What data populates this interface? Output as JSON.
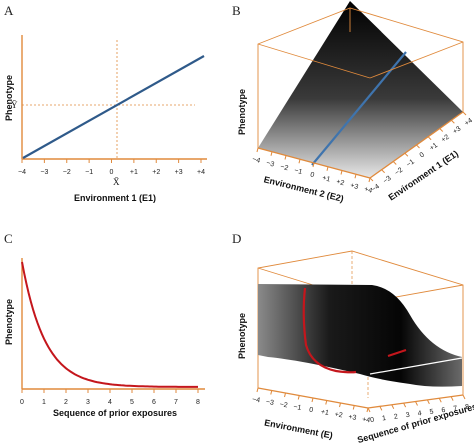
{
  "panels": {
    "a": {
      "letter": "A",
      "xlabel": "Environment 1 (E1)",
      "ylabel": "Phenotype",
      "mean_y_label": "Ȳ",
      "mean_x_label": "X̄",
      "x_ticks": [
        "−4",
        "−3",
        "−2",
        "−1",
        "0",
        "+1",
        "+2",
        "+3",
        "+4"
      ]
    },
    "b": {
      "letter": "B",
      "xlabel": "Environment 2 (E2)",
      "zlabel": "Environment 1 (E1)",
      "ylabel": "Phenotype",
      "e2_ticks": [
        "−4",
        "−3",
        "−2",
        "−1",
        "0",
        "+1",
        "+2",
        "+3",
        "+4"
      ],
      "e1_ticks": [
        "−4",
        "−3",
        "−2",
        "−1",
        "0",
        "+1",
        "+2",
        "+3",
        "+4"
      ]
    },
    "c": {
      "letter": "C",
      "xlabel": "Sequence of prior exposures",
      "ylabel": "Phenotype",
      "x_ticks": [
        "0",
        "1",
        "2",
        "3",
        "4",
        "5",
        "6",
        "7",
        "8"
      ]
    },
    "d": {
      "letter": "D",
      "xlabel": "Environment (E)",
      "zlabel": "Sequence of prior exposures",
      "ylabel": "Phenotype",
      "e_ticks": [
        "−4",
        "−3",
        "−2",
        "−1",
        "0",
        "+1",
        "+2",
        "+3",
        "+4"
      ],
      "seq_ticks": [
        "0",
        "1",
        "2",
        "3",
        "4",
        "5",
        "6",
        "7",
        "8"
      ]
    }
  },
  "colors": {
    "axis": "#e08a3c",
    "line_a": "#2f5a8a",
    "line_b": "#3f74ad",
    "curve": "#c4161c"
  }
}
